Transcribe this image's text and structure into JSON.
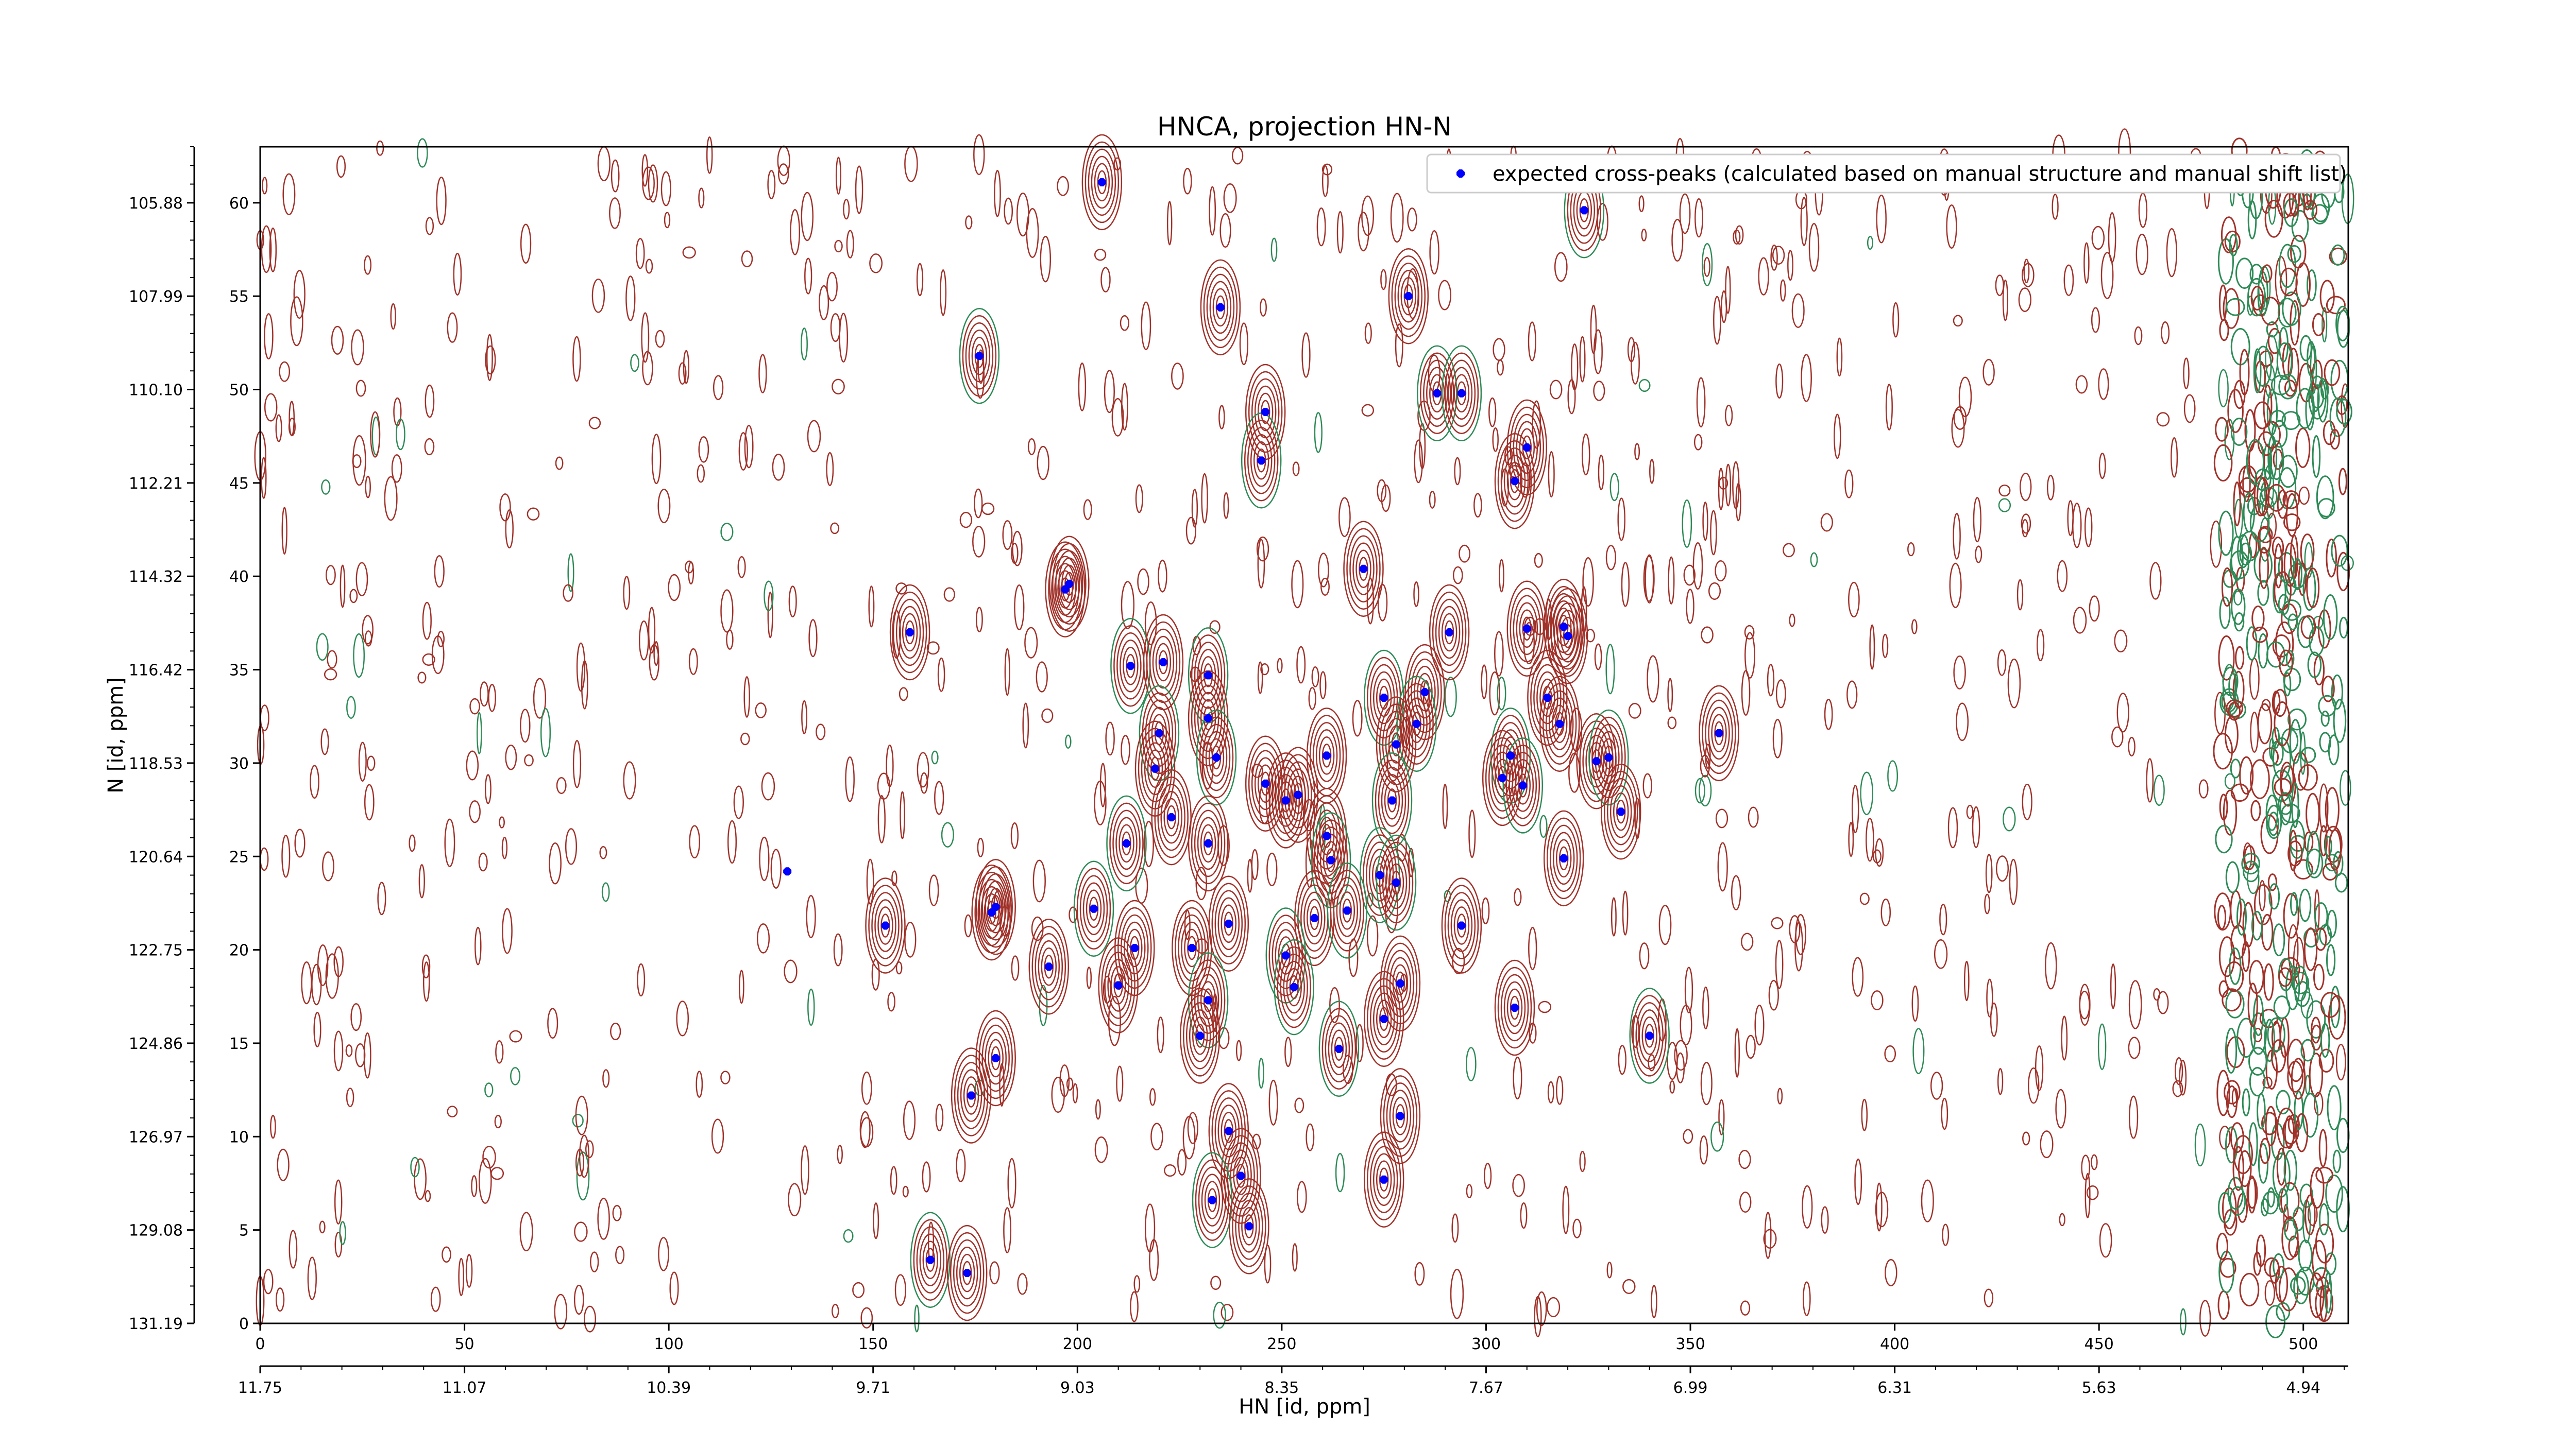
{
  "chart_data": {
    "type": "scatter",
    "title": "HNCA, projection HN-N",
    "xlabel": "HN [id, ppm]",
    "ylabel": "N [id, ppm]",
    "xlim": [
      0,
      511
    ],
    "ylim": [
      0,
      63
    ],
    "x_index_ticks": [
      "0",
      "50",
      "100",
      "150",
      "200",
      "250",
      "300",
      "350",
      "400",
      "450",
      "500"
    ],
    "x_ppm_ticks": [
      "11.75",
      "11.07",
      "10.39",
      "9.71",
      "9.03",
      "8.35",
      "7.67",
      "6.99",
      "6.31",
      "5.63",
      "4.94"
    ],
    "y_index_ticks": [
      "0",
      "5",
      "10",
      "15",
      "20",
      "25",
      "30",
      "35",
      "40",
      "45",
      "50",
      "55",
      "60"
    ],
    "y_ppm_ticks": [
      "131.19",
      "129.08",
      "126.97",
      "124.86",
      "122.75",
      "120.64",
      "118.53",
      "116.42",
      "114.32",
      "112.21",
      "110.10",
      "107.99",
      "105.88"
    ],
    "contour_colors": {
      "positive": "#a0322a",
      "negative": "#2e8b57"
    },
    "marker_color": "#0000ff",
    "legend_position": "top-right",
    "series": [
      {
        "name": "expected cross-peaks (calculated based on manual structure and manual shift list)",
        "points": [
          [
            206,
            61.1
          ],
          [
            324,
            59.6
          ],
          [
            235,
            54.4
          ],
          [
            281,
            55.0
          ],
          [
            176,
            51.8
          ],
          [
            288,
            49.8
          ],
          [
            294,
            49.8
          ],
          [
            246,
            48.8
          ],
          [
            245,
            46.2
          ],
          [
            310,
            46.9
          ],
          [
            307,
            45.1
          ],
          [
            270,
            40.4
          ],
          [
            197,
            39.3
          ],
          [
            198,
            39.6
          ],
          [
            159,
            37.0
          ],
          [
            291,
            37.0
          ],
          [
            310,
            37.2
          ],
          [
            319,
            37.3
          ],
          [
            320,
            36.8
          ],
          [
            213,
            35.2
          ],
          [
            221,
            35.4
          ],
          [
            232,
            34.7
          ],
          [
            275,
            33.5
          ],
          [
            285,
            33.8
          ],
          [
            315,
            33.5
          ],
          [
            220,
            31.6
          ],
          [
            232,
            32.4
          ],
          [
            283,
            32.1
          ],
          [
            318,
            32.1
          ],
          [
            357,
            31.6
          ],
          [
            278,
            31.0
          ],
          [
            234,
            30.3
          ],
          [
            261,
            30.4
          ],
          [
            306,
            30.4
          ],
          [
            219,
            29.7
          ],
          [
            304,
            29.2
          ],
          [
            309,
            28.8
          ],
          [
            327,
            30.1
          ],
          [
            330,
            30.3
          ],
          [
            246,
            28.9
          ],
          [
            251,
            28.0
          ],
          [
            254,
            28.3
          ],
          [
            277,
            28.0
          ],
          [
            223,
            27.1
          ],
          [
            333,
            27.4
          ],
          [
            232,
            25.7
          ],
          [
            261,
            26.1
          ],
          [
            212,
            25.7
          ],
          [
            262,
            24.8
          ],
          [
            319,
            24.9
          ],
          [
            274,
            24.0
          ],
          [
            278,
            23.6
          ],
          [
            179,
            22.0
          ],
          [
            180,
            22.3
          ],
          [
            204,
            22.2
          ],
          [
            237,
            21.4
          ],
          [
            258,
            21.7
          ],
          [
            266,
            22.1
          ],
          [
            294,
            21.3
          ],
          [
            153,
            21.3
          ],
          [
            214,
            20.1
          ],
          [
            228,
            20.1
          ],
          [
            251,
            19.7
          ],
          [
            193,
            19.1
          ],
          [
            210,
            18.1
          ],
          [
            253,
            18.0
          ],
          [
            279,
            18.2
          ],
          [
            232,
            17.3
          ],
          [
            307,
            16.9
          ],
          [
            275,
            16.3
          ],
          [
            230,
            15.4
          ],
          [
            340,
            15.4
          ],
          [
            264,
            14.7
          ],
          [
            180,
            14.2
          ],
          [
            174,
            12.2
          ],
          [
            279,
            11.1
          ],
          [
            237,
            10.3
          ],
          [
            240,
            7.9
          ],
          [
            275,
            7.7
          ],
          [
            233,
            6.6
          ],
          [
            242,
            5.2
          ],
          [
            164,
            3.4
          ],
          [
            173,
            2.7
          ],
          [
            129,
            24.2
          ]
        ]
      }
    ]
  }
}
